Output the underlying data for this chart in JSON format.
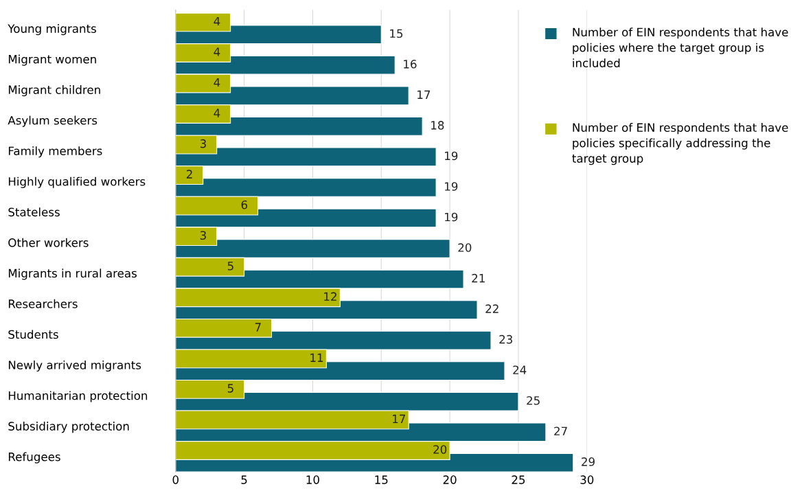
{
  "chart_data": {
    "type": "bar",
    "orientation": "horizontal",
    "categories": [
      "Young migrants",
      "Migrant women",
      "Migrant children",
      "Asylum seekers",
      "Family members",
      "Highly qualified workers",
      "Stateless",
      "Other workers",
      "Migrants in rural areas",
      "Researchers",
      "Students",
      "Newly arrived migrants",
      "Humanitarian protection",
      "Subsidiary protection",
      "Refugees"
    ],
    "series": [
      {
        "name": "Number of EIN respondents that have policies where the target group is included",
        "color": "#0e6378",
        "values": [
          15,
          16,
          17,
          18,
          19,
          19,
          19,
          20,
          21,
          22,
          23,
          24,
          25,
          27,
          29
        ]
      },
      {
        "name": "Number of EIN respondents that have policies specifically addressing the target group",
        "color": "#b4b800",
        "values": [
          4,
          4,
          4,
          4,
          3,
          2,
          6,
          3,
          5,
          12,
          7,
          11,
          5,
          17,
          20
        ]
      }
    ],
    "xlim": [
      0,
      30
    ],
    "xticks": [
      0,
      5,
      10,
      15,
      20,
      25,
      30
    ],
    "grid": "x",
    "legend": "right",
    "data_labels": true
  }
}
